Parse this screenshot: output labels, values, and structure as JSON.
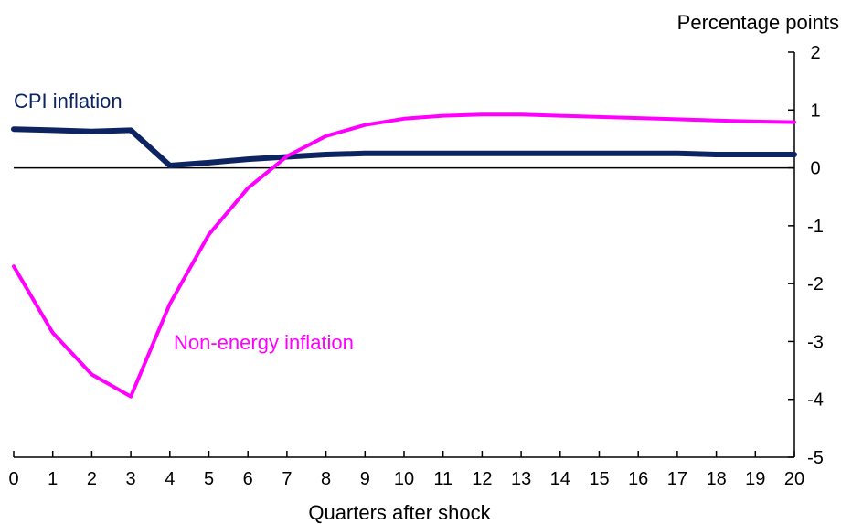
{
  "chart_data": {
    "type": "line",
    "ylabel": "Percentage points",
    "xlabel": "Quarters after shock",
    "x": [
      0,
      1,
      2,
      3,
      4,
      5,
      6,
      7,
      8,
      9,
      10,
      11,
      12,
      13,
      14,
      15,
      16,
      17,
      18,
      19,
      20
    ],
    "ylim": [
      -5,
      2
    ],
    "xlim": [
      0,
      20
    ],
    "yticks": [
      2,
      1,
      0,
      -1,
      -2,
      -3,
      -4,
      -5
    ],
    "grid": false,
    "legend": "none",
    "series": [
      {
        "name": "CPI inflation",
        "color": "#0c2461",
        "values": [
          0.67,
          0.65,
          0.63,
          0.65,
          0.04,
          0.09,
          0.15,
          0.19,
          0.23,
          0.25,
          0.25,
          0.25,
          0.25,
          0.25,
          0.25,
          0.25,
          0.25,
          0.25,
          0.23,
          0.23,
          0.23
        ]
      },
      {
        "name": "Non-energy inflation",
        "color": "#ff00ff",
        "values": [
          -1.7,
          -2.85,
          -3.57,
          -3.95,
          -2.35,
          -1.15,
          -0.35,
          0.2,
          0.55,
          0.74,
          0.85,
          0.9,
          0.92,
          0.92,
          0.9,
          0.88,
          0.86,
          0.84,
          0.82,
          0.8,
          0.79
        ]
      }
    ]
  }
}
